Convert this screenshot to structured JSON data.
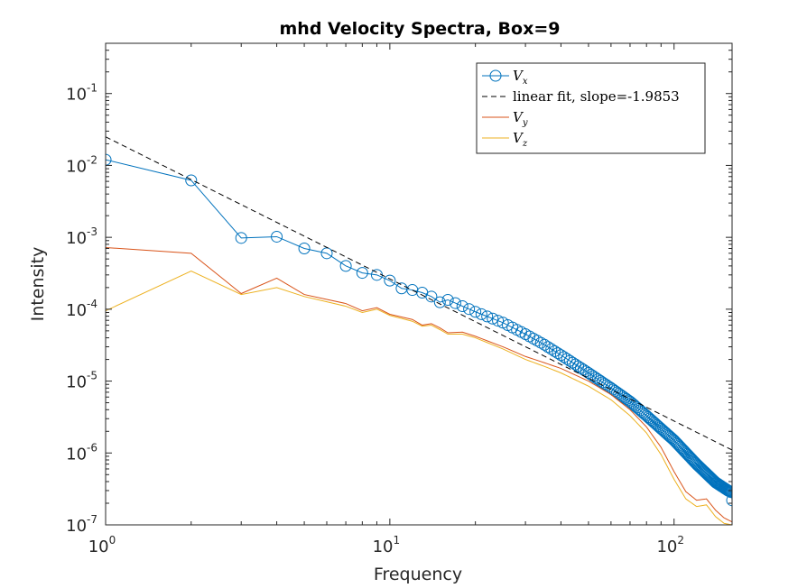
{
  "chart_data": {
    "type": "line",
    "title": "mhd Velocity Spectra, Box=9",
    "xlabel": "Frequency",
    "ylabel": "Intensity",
    "xscale": "log",
    "yscale": "log",
    "xlim": [
      1,
      160
    ],
    "ylim": [
      1e-07,
      0.5
    ],
    "xticks": [
      {
        "base": "10",
        "exp": "0",
        "value": 1
      },
      {
        "base": "10",
        "exp": "1",
        "value": 10
      },
      {
        "base": "10",
        "exp": "2",
        "value": 100
      }
    ],
    "yticks": [
      {
        "base": "10",
        "exp": "-7",
        "value": 1e-07
      },
      {
        "base": "10",
        "exp": "-6",
        "value": 1e-06
      },
      {
        "base": "10",
        "exp": "-5",
        "value": 1e-05
      },
      {
        "base": "10",
        "exp": "-4",
        "value": 0.0001
      },
      {
        "base": "10",
        "exp": "-3",
        "value": 0.001
      },
      {
        "base": "10",
        "exp": "-2",
        "value": 0.01
      },
      {
        "base": "10",
        "exp": "-1",
        "value": 0.1
      }
    ],
    "grid": false,
    "legend_position": "top-right",
    "series": [
      {
        "name": "V",
        "subscript": "x",
        "color": "#0072BD",
        "marker": "circle",
        "anchors": [
          [
            1,
            0.012
          ],
          [
            2,
            0.0062
          ],
          [
            3,
            0.00098
          ],
          [
            4,
            0.00102
          ],
          [
            5,
            0.0007
          ],
          [
            6,
            0.0006
          ],
          [
            7,
            0.0004
          ],
          [
            8,
            0.00032
          ],
          [
            9,
            0.0003
          ],
          [
            10,
            0.00025
          ],
          [
            11,
            0.000195
          ],
          [
            12,
            0.000185
          ],
          [
            13,
            0.00017
          ],
          [
            14,
            0.00015
          ],
          [
            15,
            0.000125
          ],
          [
            16,
            0.000135
          ],
          [
            20,
            9.2e-05
          ],
          [
            25,
            6.5e-05
          ],
          [
            30,
            4.5e-05
          ],
          [
            35,
            3.2e-05
          ],
          [
            40,
            2.3e-05
          ],
          [
            50,
            1.3e-05
          ],
          [
            60,
            8e-06
          ],
          [
            70,
            5.2e-06
          ],
          [
            80,
            3.3e-06
          ],
          [
            100,
            1.5e-06
          ],
          [
            120,
            7e-07
          ],
          [
            140,
            3.9e-07
          ],
          [
            155,
            3e-07
          ],
          [
            159,
            2.85e-07
          ],
          [
            160,
            2.2e-07
          ]
        ]
      },
      {
        "name": "linear fit, slope=-1.9853",
        "color": "#000000",
        "style": "dashed",
        "anchors": [
          [
            1,
            0.025
          ],
          [
            160,
            1.1e-06
          ]
        ]
      },
      {
        "name": "V",
        "subscript": "y",
        "color": "#D95319",
        "anchors": [
          [
            1,
            0.00072
          ],
          [
            2,
            0.0006
          ],
          [
            3,
            0.000165
          ],
          [
            4,
            0.00027
          ],
          [
            5,
            0.00016
          ],
          [
            7,
            0.00012
          ],
          [
            8,
            9.5e-05
          ],
          [
            9,
            0.000105
          ],
          [
            10,
            8.5e-05
          ],
          [
            12,
            7.2e-05
          ],
          [
            13,
            6e-05
          ],
          [
            14,
            6.3e-05
          ],
          [
            15,
            5.5e-05
          ],
          [
            16,
            4.7e-05
          ],
          [
            18,
            4.8e-05
          ],
          [
            20,
            4.2e-05
          ],
          [
            25,
            3e-05
          ],
          [
            30,
            2.2e-05
          ],
          [
            35,
            1.8e-05
          ],
          [
            40,
            1.5e-05
          ],
          [
            50,
            1e-05
          ],
          [
            60,
            6.5e-06
          ],
          [
            70,
            4e-06
          ],
          [
            80,
            2.3e-06
          ],
          [
            90,
            1.2e-06
          ],
          [
            100,
            5.5e-07
          ],
          [
            110,
            2.9e-07
          ],
          [
            120,
            2.2e-07
          ],
          [
            130,
            2.3e-07
          ],
          [
            140,
            1.6e-07
          ],
          [
            150,
            1.25e-07
          ],
          [
            160,
            1.1e-07
          ]
        ]
      },
      {
        "name": "V",
        "subscript": "z",
        "color": "#EDB120",
        "anchors": [
          [
            1,
            9.5e-05
          ],
          [
            2,
            0.00034
          ],
          [
            3,
            0.00016
          ],
          [
            4,
            0.0002
          ],
          [
            5,
            0.00015
          ],
          [
            7,
            0.00011
          ],
          [
            8,
            9e-05
          ],
          [
            9,
            0.0001
          ],
          [
            10,
            8.2e-05
          ],
          [
            12,
            6.8e-05
          ],
          [
            13,
            5.8e-05
          ],
          [
            14,
            6e-05
          ],
          [
            15,
            5.2e-05
          ],
          [
            16,
            4.5e-05
          ],
          [
            18,
            4.5e-05
          ],
          [
            20,
            4e-05
          ],
          [
            25,
            2.8e-05
          ],
          [
            30,
            2e-05
          ],
          [
            35,
            1.6e-05
          ],
          [
            40,
            1.3e-05
          ],
          [
            50,
            8.5e-06
          ],
          [
            60,
            5.5e-06
          ],
          [
            70,
            3.3e-06
          ],
          [
            80,
            1.9e-06
          ],
          [
            90,
            9.5e-07
          ],
          [
            100,
            4.3e-07
          ],
          [
            110,
            2.3e-07
          ],
          [
            120,
            1.8e-07
          ],
          [
            130,
            1.9e-07
          ],
          [
            140,
            1.3e-07
          ],
          [
            150,
            1.05e-07
          ],
          [
            160,
            1e-07
          ]
        ]
      }
    ]
  }
}
